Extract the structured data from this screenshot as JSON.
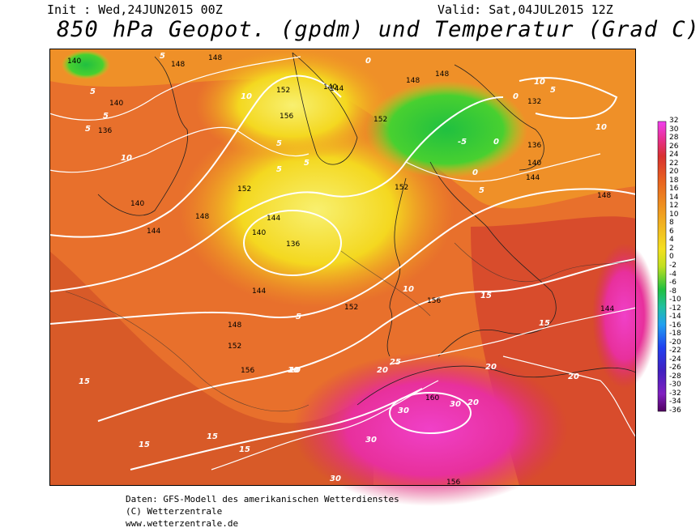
{
  "header": {
    "init": "Init : Wed,24JUN2015 00Z",
    "valid": "Valid: Sat,04JUL2015 12Z",
    "title": "850 hPa Geopot. (gpdm) und Temperatur (Grad C)"
  },
  "map": {
    "geopotential_labels": [
      "140",
      "148",
      "148",
      "140",
      "152",
      "156",
      "136",
      "144",
      "140",
      "148",
      "152",
      "152",
      "140",
      "144",
      "136",
      "148",
      "152",
      "144",
      "140",
      "144",
      "152",
      "156",
      "148",
      "152",
      "156",
      "144",
      "144",
      "160",
      "136",
      "132",
      "148",
      "156",
      "140",
      "148"
    ],
    "temperature_labels": [
      "5",
      "5",
      "5",
      "10",
      "5",
      "10",
      "5",
      "5",
      "5",
      "0",
      "0",
      "0",
      "-5",
      "0",
      "5",
      "10",
      "10",
      "5",
      "5",
      "15",
      "10",
      "15",
      "15",
      "15",
      "10",
      "15",
      "15",
      "20",
      "25",
      "20",
      "20",
      "20",
      "30",
      "30",
      "30",
      "30",
      "10"
    ],
    "colors": {
      "warm": "#e8642a",
      "hot": "#e8347a",
      "cool": "#30c040",
      "yellow": "#f4e820"
    }
  },
  "legend": {
    "ticks": [
      "32",
      "30",
      "28",
      "26",
      "24",
      "22",
      "20",
      "18",
      "16",
      "14",
      "12",
      "10",
      "8",
      "6",
      "4",
      "2",
      "0",
      "-2",
      "-4",
      "-6",
      "-8",
      "-10",
      "-12",
      "-14",
      "-16",
      "-18",
      "-20",
      "-22",
      "-24",
      "-26",
      "-28",
      "-30",
      "-32",
      "-34",
      "-36"
    ]
  },
  "footer": {
    "line1": "Daten: GFS-Modell des amerikanischen Wetterdienstes",
    "line2": "(C) Wetterzentrale",
    "line3": "www.wetterzentrale.de"
  }
}
